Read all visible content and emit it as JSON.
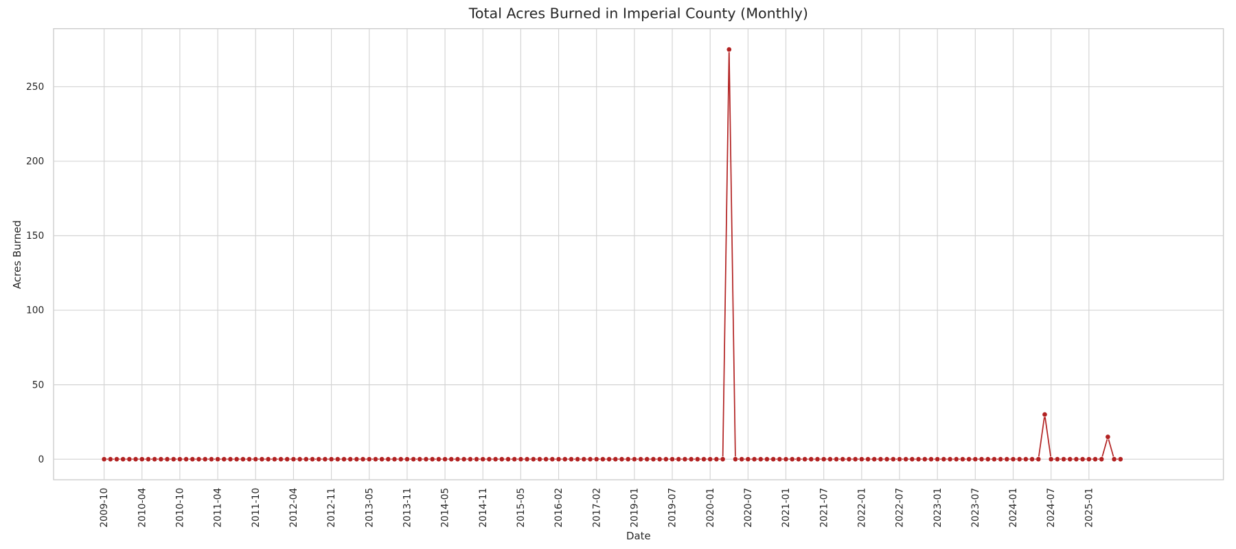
{
  "chart_data": {
    "type": "line",
    "title": "Total Acres Burned in Imperial County (Monthly)",
    "x_label": "Date",
    "y_label": "Acres Burned",
    "categories": [
      "2009-10",
      null,
      null,
      null,
      null,
      null,
      "2010-04",
      null,
      null,
      null,
      null,
      null,
      "2010-10",
      null,
      null,
      null,
      null,
      null,
      "2011-04",
      null,
      null,
      null,
      null,
      null,
      "2011-10",
      null,
      null,
      null,
      null,
      null,
      "2012-04",
      null,
      null,
      null,
      null,
      null,
      "2012-11",
      null,
      null,
      null,
      null,
      null,
      "2013-05",
      null,
      null,
      null,
      null,
      null,
      "2013-11",
      null,
      null,
      null,
      null,
      null,
      "2014-05",
      null,
      null,
      null,
      null,
      null,
      "2014-11",
      null,
      null,
      null,
      null,
      null,
      "2015-05",
      null,
      null,
      null,
      null,
      null,
      "2016-02",
      null,
      null,
      null,
      null,
      null,
      "2017-02",
      null,
      null,
      null,
      null,
      null,
      "2019-01",
      null,
      null,
      null,
      null,
      null,
      "2019-07",
      null,
      null,
      null,
      null,
      null,
      "2020-01",
      null,
      null,
      null,
      null,
      null,
      "2020-07",
      null,
      null,
      null,
      null,
      null,
      "2021-01",
      null,
      null,
      null,
      null,
      null,
      "2021-07",
      null,
      null,
      null,
      null,
      null,
      "2022-01",
      null,
      null,
      null,
      null,
      null,
      "2022-07",
      null,
      null,
      null,
      null,
      null,
      "2023-01",
      null,
      null,
      null,
      null,
      null,
      "2023-07",
      null,
      null,
      null,
      null,
      null,
      "2024-01",
      null,
      null,
      null,
      null,
      null,
      "2024-07",
      null,
      null,
      null,
      null,
      null,
      "2025-01",
      null,
      null,
      null,
      null,
      null
    ],
    "values": [
      0,
      0,
      0,
      0,
      0,
      0,
      0,
      0,
      0,
      0,
      0,
      0,
      0,
      0,
      0,
      0,
      0,
      0,
      0,
      0,
      0,
      0,
      0,
      0,
      0,
      0,
      0,
      0,
      0,
      0,
      0,
      0,
      0,
      0,
      0,
      0,
      0,
      0,
      0,
      0,
      0,
      0,
      0,
      0,
      0,
      0,
      0,
      0,
      0,
      0,
      0,
      0,
      0,
      0,
      0,
      0,
      0,
      0,
      0,
      0,
      0,
      0,
      0,
      0,
      0,
      0,
      0,
      0,
      0,
      0,
      0,
      0,
      0,
      0,
      0,
      0,
      0,
      0,
      0,
      0,
      0,
      0,
      0,
      0,
      0,
      0,
      0,
      0,
      0,
      0,
      0,
      0,
      0,
      0,
      0,
      0,
      0,
      0,
      0,
      275,
      0,
      0,
      0,
      0,
      0,
      0,
      0,
      0,
      0,
      0,
      0,
      0,
      0,
      0,
      0,
      0,
      0,
      0,
      0,
      0,
      0,
      0,
      0,
      0,
      0,
      0,
      0,
      0,
      0,
      0,
      0,
      0,
      0,
      0,
      0,
      0,
      0,
      0,
      0,
      0,
      0,
      0,
      0,
      0,
      0,
      0,
      0,
      0,
      0,
      30,
      0,
      0,
      0,
      0,
      0,
      0,
      0,
      0,
      0,
      15,
      0,
      0
    ],
    "color": "#b22222",
    "ylim": [
      -13.8,
      289
    ],
    "yticks": [
      0,
      50,
      100,
      150,
      200,
      250
    ],
    "grid": true
  }
}
